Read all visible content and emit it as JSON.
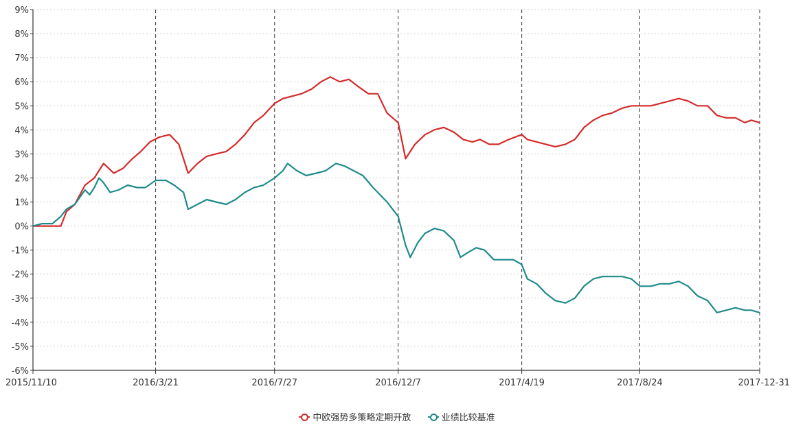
{
  "chart_data": {
    "type": "line",
    "title": "",
    "xlabel": "",
    "ylabel": "",
    "y_ticks": [
      "9%",
      "8%",
      "7%",
      "6%",
      "5%",
      "4%",
      "3%",
      "2%",
      "1%",
      "0%",
      "-1%",
      "-2%",
      "-3%",
      "-4%",
      "-5%",
      "-6%"
    ],
    "y_tick_values": [
      9,
      8,
      7,
      6,
      5,
      4,
      3,
      2,
      1,
      0,
      -1,
      -2,
      -3,
      -4,
      -5,
      -6
    ],
    "ylim": [
      -6,
      9
    ],
    "x_ticks": [
      "2015/11/10",
      "2016/3/21",
      "2016/7/27",
      "2016/12/7",
      "2017/4/19",
      "2017/8/24",
      "2017-12-31"
    ],
    "xlim": [
      "2015-11-10",
      "2017-12-31"
    ],
    "grid": "horizontal dotted, vertical dashed at x ticks",
    "legend_position": "bottom-center",
    "series": [
      {
        "name": "中欧强势多策略定期开放",
        "color": "#d42a2a",
        "points": [
          [
            "2015-11-10",
            0.0
          ],
          [
            "2015-11-20",
            0.0
          ],
          [
            "2015-12-01",
            0.0
          ],
          [
            "2015-12-10",
            0.0
          ],
          [
            "2015-12-16",
            0.6
          ],
          [
            "2015-12-25",
            0.9
          ],
          [
            "2016-01-05",
            1.7
          ],
          [
            "2016-01-15",
            2.0
          ],
          [
            "2016-01-25",
            2.6
          ],
          [
            "2016-02-05",
            2.2
          ],
          [
            "2016-02-15",
            2.4
          ],
          [
            "2016-02-25",
            2.8
          ],
          [
            "2016-03-05",
            3.1
          ],
          [
            "2016-03-15",
            3.5
          ],
          [
            "2016-03-25",
            3.7
          ],
          [
            "2016-04-05",
            3.8
          ],
          [
            "2016-04-15",
            3.4
          ],
          [
            "2016-04-25",
            2.2
          ],
          [
            "2016-05-05",
            2.6
          ],
          [
            "2016-05-15",
            2.9
          ],
          [
            "2016-05-25",
            3.0
          ],
          [
            "2016-06-05",
            3.1
          ],
          [
            "2016-06-15",
            3.4
          ],
          [
            "2016-06-25",
            3.8
          ],
          [
            "2016-07-05",
            4.3
          ],
          [
            "2016-07-15",
            4.6
          ],
          [
            "2016-07-27",
            5.1
          ],
          [
            "2016-08-05",
            5.3
          ],
          [
            "2016-08-15",
            5.4
          ],
          [
            "2016-08-25",
            5.5
          ],
          [
            "2016-09-05",
            5.7
          ],
          [
            "2016-09-15",
            6.0
          ],
          [
            "2016-09-25",
            6.2
          ],
          [
            "2016-10-05",
            6.0
          ],
          [
            "2016-10-15",
            6.1
          ],
          [
            "2016-10-25",
            5.8
          ],
          [
            "2016-11-05",
            5.5
          ],
          [
            "2016-11-15",
            5.5
          ],
          [
            "2016-11-25",
            4.7
          ],
          [
            "2016-12-07",
            4.3
          ],
          [
            "2016-12-15",
            2.8
          ],
          [
            "2016-12-25",
            3.4
          ],
          [
            "2017-01-05",
            3.8
          ],
          [
            "2017-01-15",
            4.0
          ],
          [
            "2017-01-25",
            4.1
          ],
          [
            "2017-02-05",
            3.9
          ],
          [
            "2017-02-15",
            3.6
          ],
          [
            "2017-02-25",
            3.5
          ],
          [
            "2017-03-05",
            3.6
          ],
          [
            "2017-03-15",
            3.4
          ],
          [
            "2017-03-25",
            3.4
          ],
          [
            "2017-04-05",
            3.6
          ],
          [
            "2017-04-19",
            3.8
          ],
          [
            "2017-04-25",
            3.6
          ],
          [
            "2017-05-05",
            3.5
          ],
          [
            "2017-05-15",
            3.4
          ],
          [
            "2017-05-25",
            3.3
          ],
          [
            "2017-06-05",
            3.4
          ],
          [
            "2017-06-15",
            3.6
          ],
          [
            "2017-06-25",
            4.1
          ],
          [
            "2017-07-05",
            4.4
          ],
          [
            "2017-07-15",
            4.6
          ],
          [
            "2017-07-25",
            4.7
          ],
          [
            "2017-08-05",
            4.9
          ],
          [
            "2017-08-15",
            5.0
          ],
          [
            "2017-08-24",
            5.0
          ],
          [
            "2017-09-05",
            5.0
          ],
          [
            "2017-09-15",
            5.1
          ],
          [
            "2017-09-25",
            5.2
          ],
          [
            "2017-10-05",
            5.3
          ],
          [
            "2017-10-15",
            5.2
          ],
          [
            "2017-10-25",
            5.0
          ],
          [
            "2017-11-05",
            5.0
          ],
          [
            "2017-11-15",
            4.6
          ],
          [
            "2017-11-25",
            4.5
          ],
          [
            "2017-12-05",
            4.5
          ],
          [
            "2017-12-15",
            4.3
          ],
          [
            "2017-12-22",
            4.4
          ],
          [
            "2017-12-31",
            4.3
          ]
        ]
      },
      {
        "name": "业绩比较基准",
        "color": "#1f8a8a",
        "points": [
          [
            "2015-11-10",
            0.0
          ],
          [
            "2015-11-20",
            0.1
          ],
          [
            "2015-12-01",
            0.1
          ],
          [
            "2015-12-10",
            0.4
          ],
          [
            "2015-12-16",
            0.7
          ],
          [
            "2015-12-25",
            0.9
          ],
          [
            "2016-01-05",
            1.5
          ],
          [
            "2016-01-10",
            1.3
          ],
          [
            "2016-01-15",
            1.6
          ],
          [
            "2016-01-20",
            2.0
          ],
          [
            "2016-01-25",
            1.8
          ],
          [
            "2016-02-01",
            1.4
          ],
          [
            "2016-02-10",
            1.5
          ],
          [
            "2016-02-20",
            1.7
          ],
          [
            "2016-03-01",
            1.6
          ],
          [
            "2016-03-10",
            1.6
          ],
          [
            "2016-03-21",
            1.9
          ],
          [
            "2016-04-01",
            1.9
          ],
          [
            "2016-04-10",
            1.7
          ],
          [
            "2016-04-20",
            1.4
          ],
          [
            "2016-04-25",
            0.7
          ],
          [
            "2016-05-05",
            0.9
          ],
          [
            "2016-05-15",
            1.1
          ],
          [
            "2016-05-25",
            1.0
          ],
          [
            "2016-06-05",
            0.9
          ],
          [
            "2016-06-15",
            1.1
          ],
          [
            "2016-06-25",
            1.4
          ],
          [
            "2016-07-05",
            1.6
          ],
          [
            "2016-07-15",
            1.7
          ],
          [
            "2016-07-27",
            2.0
          ],
          [
            "2016-08-05",
            2.3
          ],
          [
            "2016-08-10",
            2.6
          ],
          [
            "2016-08-20",
            2.3
          ],
          [
            "2016-08-30",
            2.1
          ],
          [
            "2016-09-10",
            2.2
          ],
          [
            "2016-09-20",
            2.3
          ],
          [
            "2016-10-01",
            2.6
          ],
          [
            "2016-10-10",
            2.5
          ],
          [
            "2016-10-20",
            2.3
          ],
          [
            "2016-10-30",
            2.1
          ],
          [
            "2016-11-10",
            1.6
          ],
          [
            "2016-11-25",
            1.0
          ],
          [
            "2016-12-07",
            0.4
          ],
          [
            "2016-12-15",
            -0.8
          ],
          [
            "2016-12-20",
            -1.3
          ],
          [
            "2016-12-28",
            -0.7
          ],
          [
            "2017-01-05",
            -0.3
          ],
          [
            "2017-01-15",
            -0.1
          ],
          [
            "2017-01-25",
            -0.2
          ],
          [
            "2017-02-05",
            -0.6
          ],
          [
            "2017-02-12",
            -1.3
          ],
          [
            "2017-02-20",
            -1.1
          ],
          [
            "2017-03-01",
            -0.9
          ],
          [
            "2017-03-10",
            -1.0
          ],
          [
            "2017-03-20",
            -1.4
          ],
          [
            "2017-03-30",
            -1.4
          ],
          [
            "2017-04-10",
            -1.4
          ],
          [
            "2017-04-19",
            -1.6
          ],
          [
            "2017-04-25",
            -2.2
          ],
          [
            "2017-05-05",
            -2.4
          ],
          [
            "2017-05-15",
            -2.8
          ],
          [
            "2017-05-25",
            -3.1
          ],
          [
            "2017-06-05",
            -3.2
          ],
          [
            "2017-06-15",
            -3.0
          ],
          [
            "2017-06-25",
            -2.5
          ],
          [
            "2017-07-05",
            -2.2
          ],
          [
            "2017-07-15",
            -2.1
          ],
          [
            "2017-07-25",
            -2.1
          ],
          [
            "2017-08-05",
            -2.1
          ],
          [
            "2017-08-15",
            -2.2
          ],
          [
            "2017-08-24",
            -2.5
          ],
          [
            "2017-09-05",
            -2.5
          ],
          [
            "2017-09-15",
            -2.4
          ],
          [
            "2017-09-25",
            -2.4
          ],
          [
            "2017-10-05",
            -2.3
          ],
          [
            "2017-10-15",
            -2.5
          ],
          [
            "2017-10-25",
            -2.9
          ],
          [
            "2017-11-05",
            -3.1
          ],
          [
            "2017-11-15",
            -3.6
          ],
          [
            "2017-11-25",
            -3.5
          ],
          [
            "2017-12-05",
            -3.4
          ],
          [
            "2017-12-15",
            -3.5
          ],
          [
            "2017-12-22",
            -3.5
          ],
          [
            "2017-12-31",
            -3.6
          ]
        ]
      }
    ]
  }
}
